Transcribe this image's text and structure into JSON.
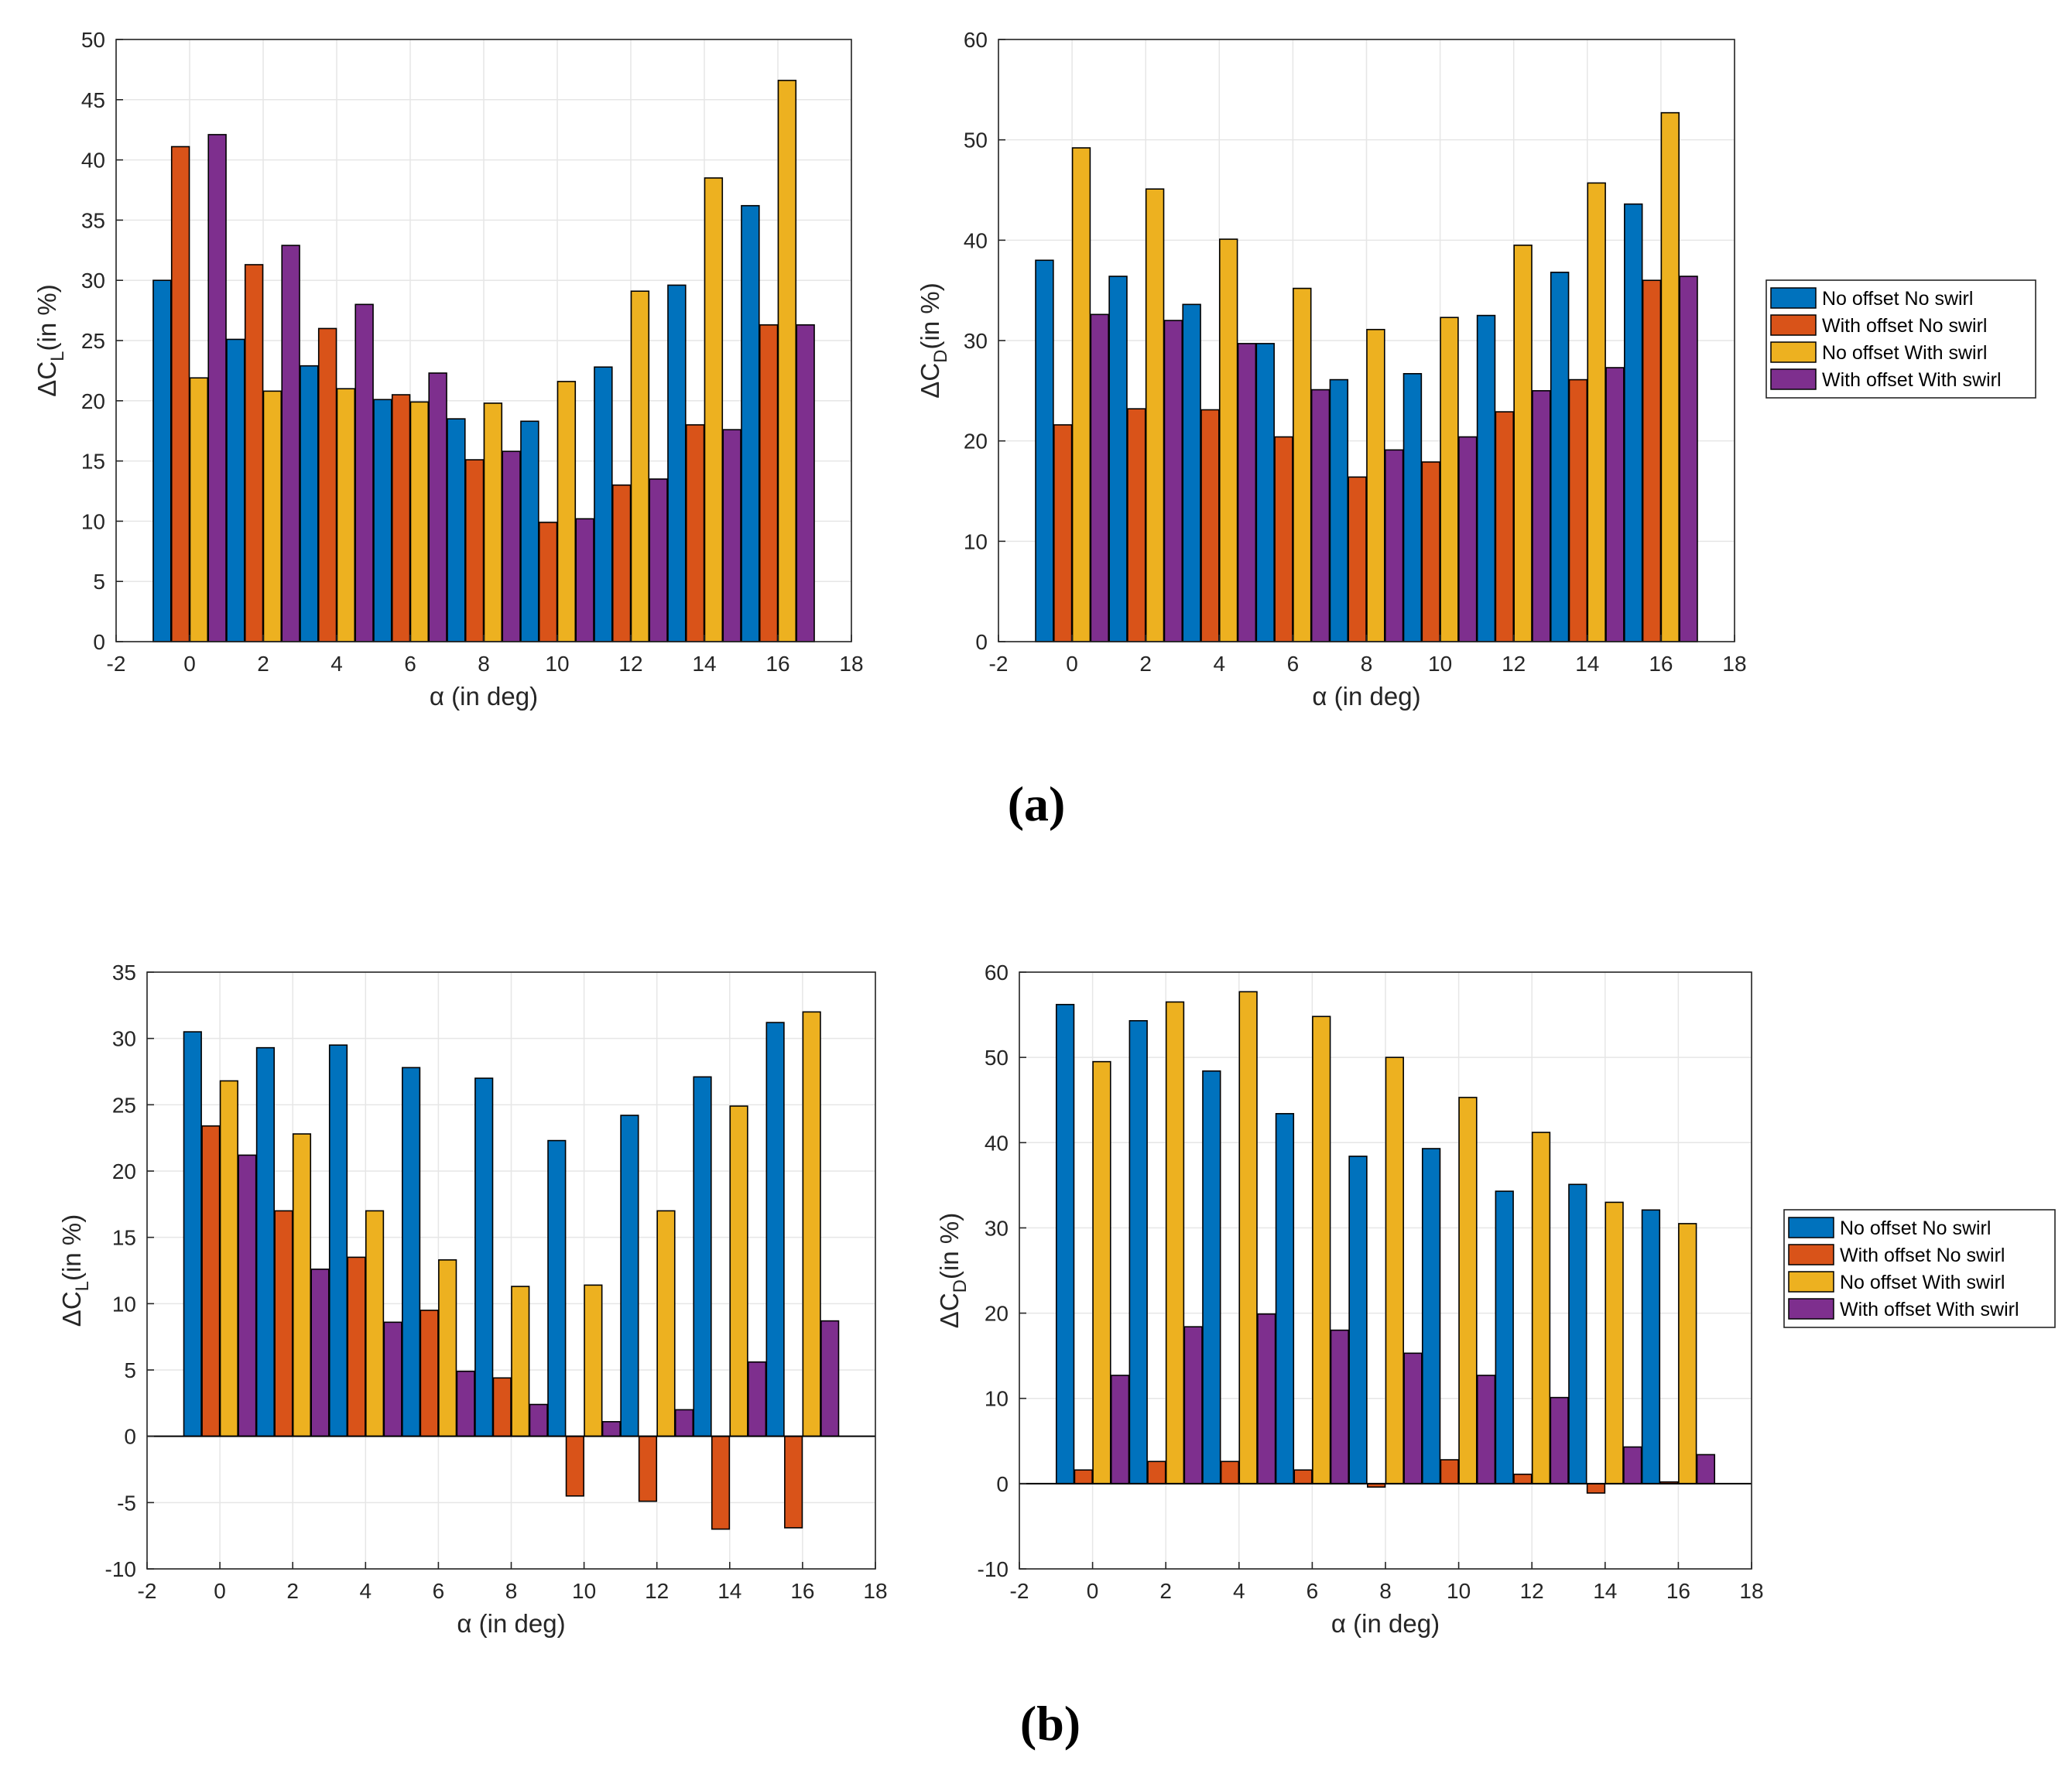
{
  "colors": {
    "series": [
      "#0072BD",
      "#D95319",
      "#EDB120",
      "#7E2F8E"
    ],
    "grid": "#e6e6e6",
    "axis": "#262626"
  },
  "panel_labels": [
    "(a)",
    "(b)"
  ],
  "legend_entries": [
    "No offset No swirl",
    "With offset No swirl",
    "No offset With swirl",
    "With offset With swirl"
  ],
  "chart_data": [
    {
      "type": "bar",
      "panel": "(a)",
      "xlabel": "α (in deg)",
      "ylabel": "ΔC_L (in %)",
      "ylabel_main": "ΔC",
      "ylabel_sub": "L",
      "ylabel_rest": "(in %)",
      "xlim": [
        -2,
        18
      ],
      "ylim": [
        0,
        50
      ],
      "xticks": [
        -2,
        0,
        2,
        4,
        6,
        8,
        10,
        12,
        14,
        16,
        18
      ],
      "yticks": [
        0,
        5,
        10,
        15,
        20,
        25,
        30,
        35,
        40,
        45,
        50
      ],
      "categories": [
        0,
        2,
        4,
        6,
        8,
        10,
        12,
        14,
        16
      ],
      "grid": true,
      "legend": "none",
      "series": [
        {
          "name": "No offset No swirl",
          "values": [
            30.0,
            25.1,
            22.9,
            20.1,
            18.5,
            18.3,
            22.8,
            29.6,
            36.2
          ]
        },
        {
          "name": "With offset No swirl",
          "values": [
            41.1,
            31.3,
            26.0,
            20.5,
            15.1,
            9.9,
            13.0,
            18.0,
            26.3
          ]
        },
        {
          "name": "No offset With swirl",
          "values": [
            21.9,
            20.8,
            21.0,
            19.9,
            19.8,
            21.6,
            29.1,
            38.5,
            46.6
          ]
        },
        {
          "name": "With offset With swirl",
          "values": [
            42.1,
            32.9,
            28.0,
            22.3,
            15.8,
            10.2,
            13.5,
            17.6,
            26.3
          ]
        }
      ]
    },
    {
      "type": "bar",
      "panel": "(a)",
      "xlabel": "α (in deg)",
      "ylabel": "ΔC_D (in %)",
      "ylabel_main": "ΔC",
      "ylabel_sub": "D",
      "ylabel_rest": "(in %)",
      "xlim": [
        -2,
        18
      ],
      "ylim": [
        0,
        60
      ],
      "xticks": [
        -2,
        0,
        2,
        4,
        6,
        8,
        10,
        12,
        14,
        16,
        18
      ],
      "yticks": [
        0,
        10,
        20,
        30,
        40,
        50,
        60
      ],
      "categories": [
        0,
        2,
        4,
        6,
        8,
        10,
        12,
        14,
        16
      ],
      "grid": true,
      "legend": "outside-right",
      "series": [
        {
          "name": "No offset No swirl",
          "values": [
            38.0,
            36.4,
            33.6,
            29.7,
            26.1,
            26.7,
            32.5,
            36.8,
            43.6
          ]
        },
        {
          "name": "With offset No swirl",
          "values": [
            21.6,
            23.2,
            23.1,
            20.4,
            16.4,
            17.9,
            22.9,
            26.1,
            36.0
          ]
        },
        {
          "name": "No offset With swirl",
          "values": [
            49.2,
            45.1,
            40.1,
            35.2,
            31.1,
            32.3,
            39.5,
            45.7,
            52.7
          ]
        },
        {
          "name": "With offset With swirl",
          "values": [
            32.6,
            32.0,
            29.7,
            25.1,
            19.1,
            20.4,
            25.0,
            27.3,
            36.4
          ]
        }
      ]
    },
    {
      "type": "bar",
      "panel": "(b)",
      "xlabel": "α (in deg)",
      "ylabel": "ΔC_L (in %)",
      "ylabel_main": "ΔC",
      "ylabel_sub": "L",
      "ylabel_rest": "(in %)",
      "xlim": [
        -2,
        18
      ],
      "ylim": [
        -10,
        35
      ],
      "xticks": [
        -2,
        0,
        2,
        4,
        6,
        8,
        10,
        12,
        14,
        16,
        18
      ],
      "yticks": [
        -10,
        -5,
        0,
        5,
        10,
        15,
        20,
        25,
        30,
        35
      ],
      "categories": [
        0,
        2,
        4,
        6,
        8,
        10,
        12,
        14,
        16
      ],
      "grid": true,
      "legend": "none",
      "series": [
        {
          "name": "No offset No swirl",
          "values": [
            30.5,
            29.3,
            29.5,
            27.8,
            27.0,
            22.3,
            24.2,
            27.1,
            31.2
          ]
        },
        {
          "name": "With offset No swirl",
          "values": [
            23.4,
            17.0,
            13.5,
            9.5,
            4.4,
            -4.5,
            -4.9,
            -7.0,
            -6.9
          ]
        },
        {
          "name": "No offset With swirl",
          "values": [
            26.8,
            22.8,
            17.0,
            13.3,
            11.3,
            11.4,
            17.0,
            24.9,
            32.0
          ]
        },
        {
          "name": "With offset With swirl",
          "values": [
            21.2,
            12.6,
            8.6,
            4.9,
            2.4,
            1.1,
            2.0,
            5.6,
            8.7
          ]
        }
      ]
    },
    {
      "type": "bar",
      "panel": "(b)",
      "xlabel": "α (in deg)",
      "ylabel": "ΔC_D (in %)",
      "ylabel_main": "ΔC",
      "ylabel_sub": "D",
      "ylabel_rest": "(in %)",
      "xlim": [
        -2,
        18
      ],
      "ylim": [
        -10,
        60
      ],
      "xticks": [
        -2,
        0,
        2,
        4,
        6,
        8,
        10,
        12,
        14,
        16,
        18
      ],
      "yticks": [
        -10,
        0,
        10,
        20,
        30,
        40,
        50,
        60
      ],
      "categories": [
        0,
        2,
        4,
        6,
        8,
        10,
        12,
        14,
        16
      ],
      "grid": true,
      "legend": "outside-right",
      "series": [
        {
          "name": "No offset No swirl",
          "values": [
            56.2,
            54.3,
            48.4,
            43.4,
            38.4,
            39.3,
            34.3,
            35.1,
            32.1
          ]
        },
        {
          "name": "With offset No swirl",
          "values": [
            1.6,
            2.6,
            2.6,
            1.6,
            -0.4,
            2.8,
            1.1,
            -1.1,
            0.2
          ]
        },
        {
          "name": "No offset With swirl",
          "values": [
            49.5,
            56.5,
            57.7,
            54.8,
            50.0,
            45.3,
            41.2,
            33.0,
            30.5
          ]
        },
        {
          "name": "With offset With swirl",
          "values": [
            12.7,
            18.4,
            19.9,
            18.0,
            15.3,
            12.7,
            10.1,
            4.3,
            3.4
          ]
        }
      ]
    }
  ]
}
